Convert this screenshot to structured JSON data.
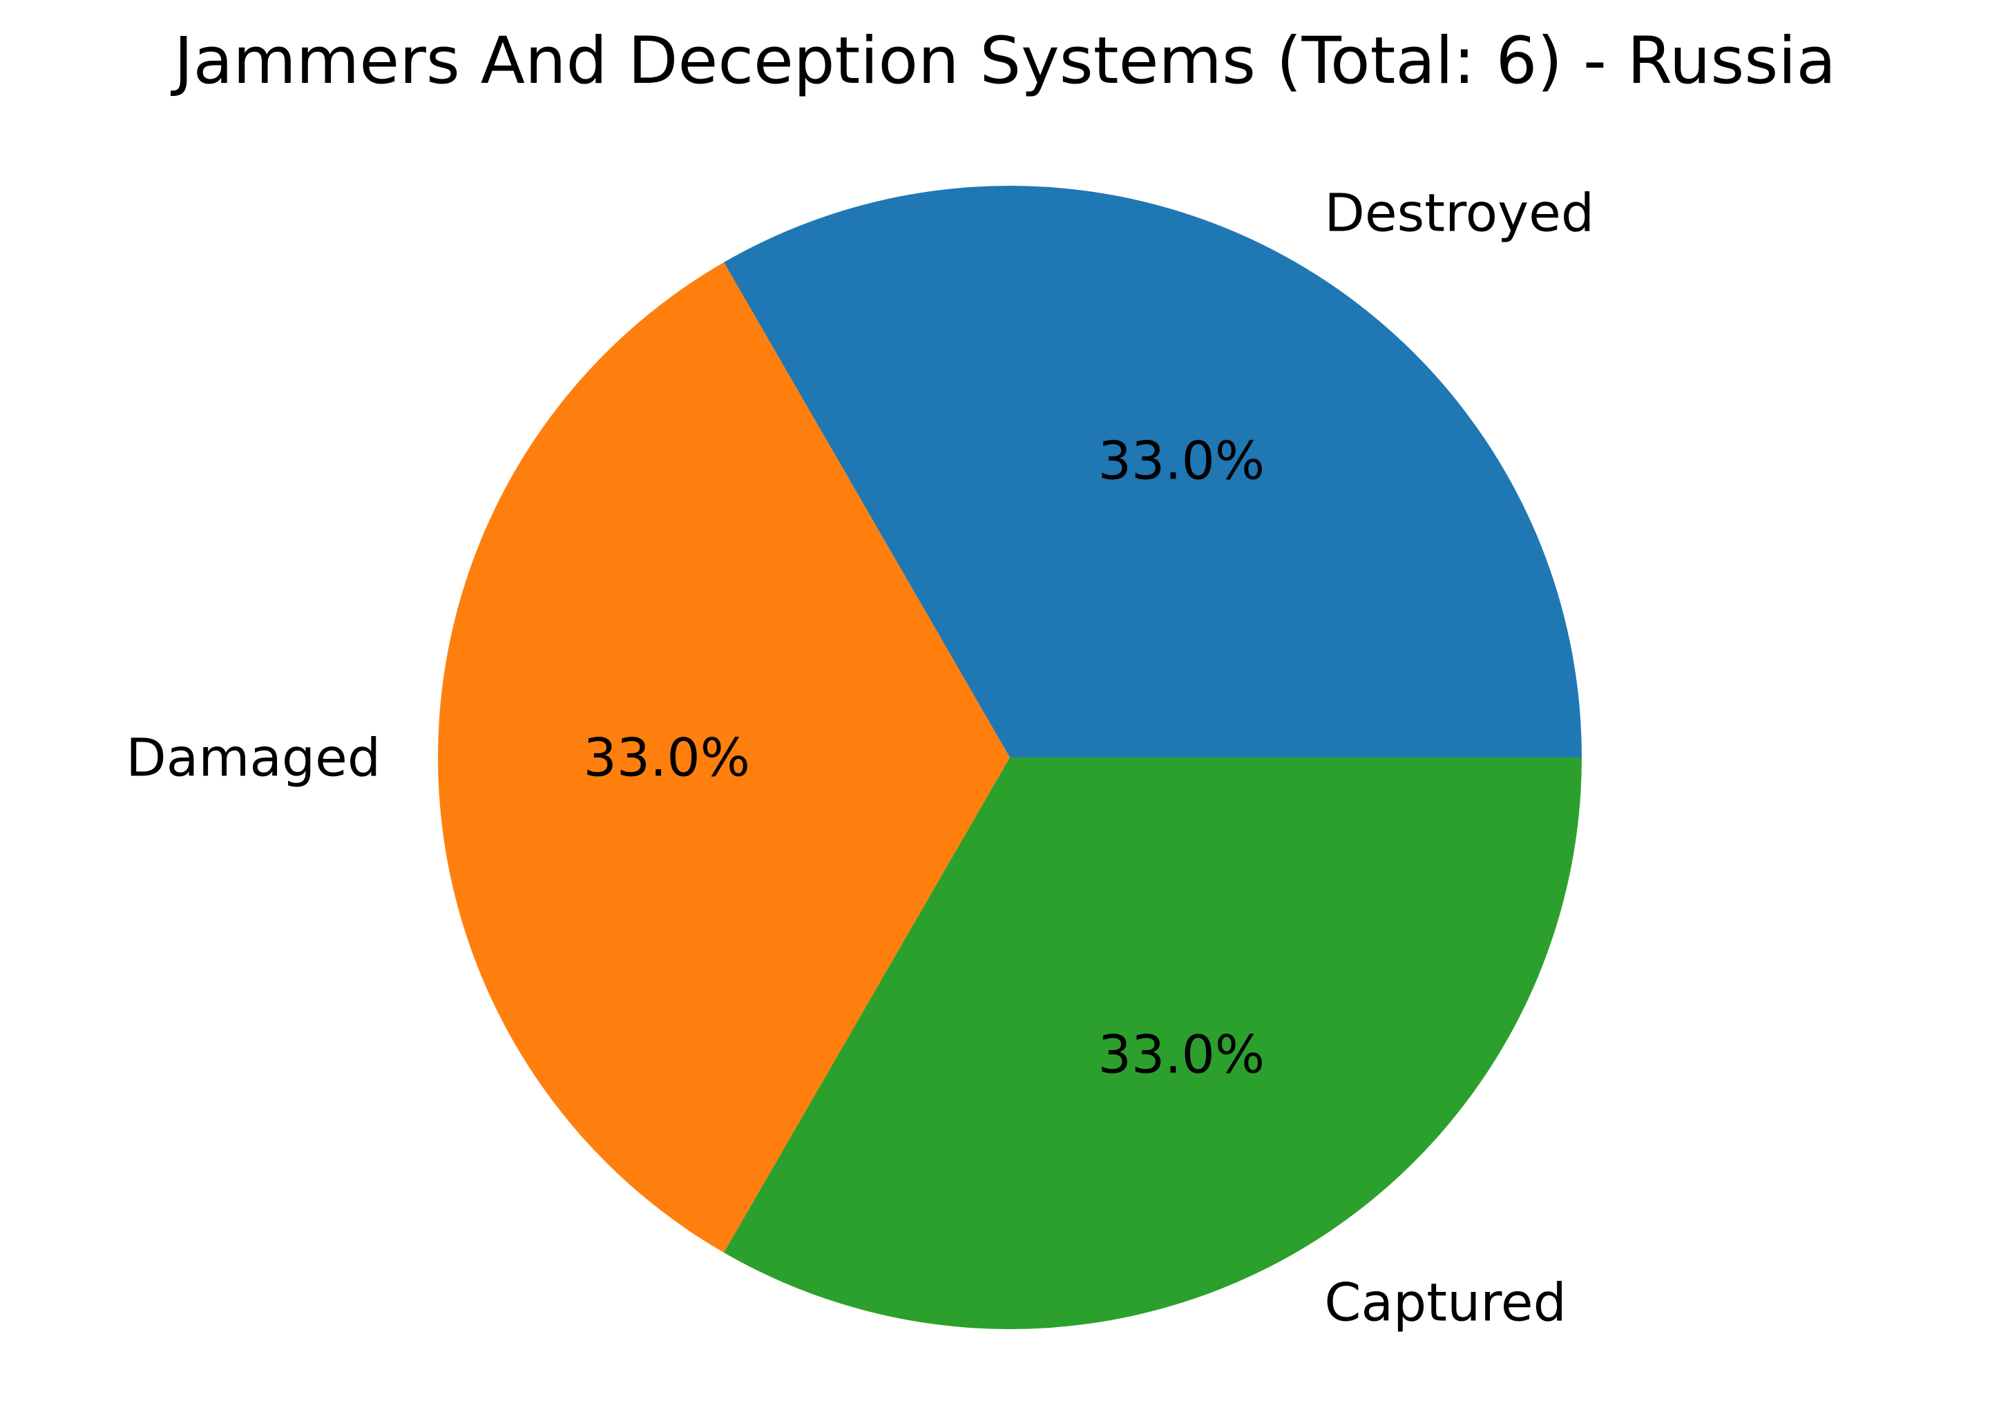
{
  "chart_data": {
    "type": "pie",
    "title": "Jammers And Deception Systems (Total: 6) - Russia",
    "slices": [
      {
        "label": "Destroyed",
        "value": 33.0,
        "pct_label": "33.0%",
        "color": "#1f77b4"
      },
      {
        "label": "Damaged",
        "value": 33.0,
        "pct_label": "33.0%",
        "color": "#ff7f0e"
      },
      {
        "label": "Captured",
        "value": 33.0,
        "pct_label": "33.0%",
        "color": "#2ca02c"
      }
    ],
    "start_angle": 0,
    "direction": "counterclockwise",
    "legend": "none"
  }
}
